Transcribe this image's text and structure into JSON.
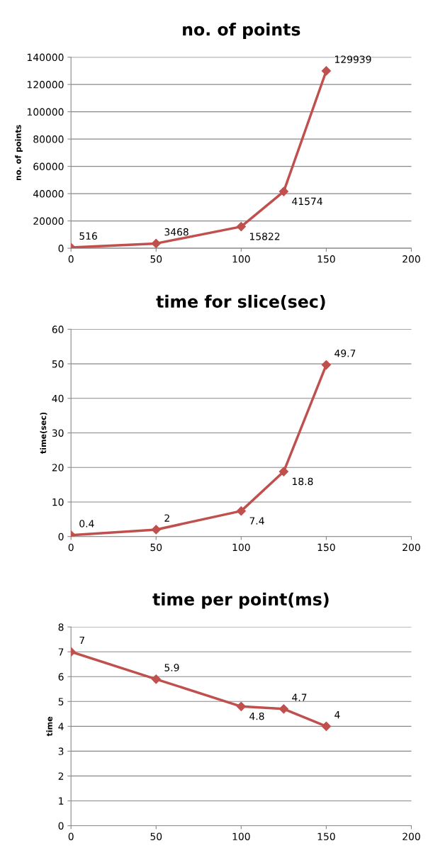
{
  "chart_data": [
    {
      "type": "line",
      "title": "no. of points",
      "ylabel": "no. of points",
      "x": [
        0,
        50,
        100,
        125,
        150
      ],
      "series": [
        {
          "color": "#c0504d",
          "values": [
            516,
            3468,
            15822,
            41574,
            129939
          ]
        }
      ],
      "xlim": [
        0,
        200
      ],
      "xticks": [
        0,
        50,
        100,
        150,
        200
      ],
      "ylim": [
        0,
        140000
      ],
      "yticks": [
        0,
        20000,
        40000,
        60000,
        80000,
        100000,
        120000,
        140000
      ],
      "grid": "y",
      "marker": "diamond",
      "line_style": "solid",
      "data_labels": true
    },
    {
      "type": "line",
      "title": "time for slice(sec)",
      "ylabel": "time(sec)",
      "x": [
        0,
        50,
        100,
        125,
        150
      ],
      "series": [
        {
          "color": "#c0504d",
          "values": [
            0.4,
            2,
            7.4,
            18.8,
            49.7
          ]
        }
      ],
      "xlim": [
        0,
        200
      ],
      "xticks": [
        0,
        50,
        100,
        150,
        200
      ],
      "ylim": [
        0,
        60
      ],
      "yticks": [
        0,
        10,
        20,
        30,
        40,
        50,
        60
      ],
      "grid": "y",
      "marker": "diamond",
      "line_style": "solid",
      "data_labels": true
    },
    {
      "type": "line",
      "title": "time per point(ms)",
      "ylabel": "time",
      "x": [
        0,
        50,
        100,
        125,
        150
      ],
      "series": [
        {
          "color": "#c0504d",
          "values": [
            7,
            5.9,
            4.8,
            4.7,
            4
          ]
        }
      ],
      "xlim": [
        0,
        200
      ],
      "xticks": [
        0,
        50,
        100,
        150,
        200
      ],
      "ylim": [
        0,
        8
      ],
      "yticks": [
        0,
        1,
        2,
        3,
        4,
        5,
        6,
        7,
        8
      ],
      "grid": "y",
      "marker": "diamond",
      "line_style": "solid",
      "data_labels": true
    }
  ]
}
